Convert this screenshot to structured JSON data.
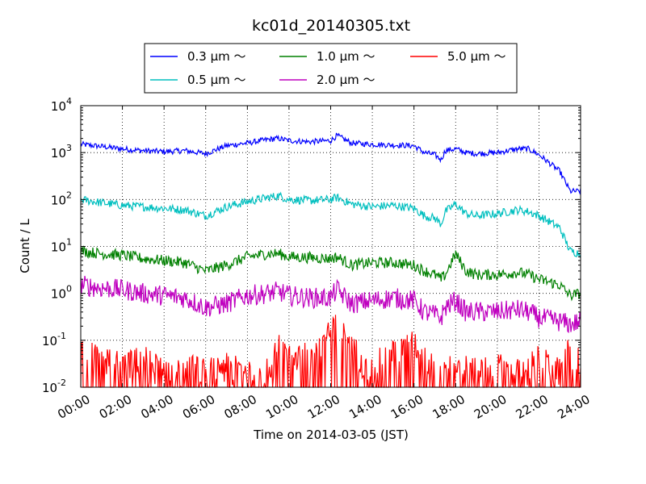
{
  "chart_data": {
    "type": "line",
    "title": "kc01d_20140305.txt",
    "xlabel": "Time on 2014-03-05 (JST)",
    "ylabel": "Count / L",
    "y_scale": "log",
    "ylim": [
      0.01,
      10000
    ],
    "xlim": [
      "00:00",
      "24:00"
    ],
    "grid": true,
    "legend_position": "top-center",
    "x_ticks": [
      "00:00",
      "02:00",
      "04:00",
      "06:00",
      "08:00",
      "10:00",
      "12:00",
      "14:00",
      "16:00",
      "18:00",
      "20:00",
      "22:00",
      "24:00"
    ],
    "y_ticks": [
      {
        "base": "10",
        "exp": "-2"
      },
      {
        "base": "10",
        "exp": "-1"
      },
      {
        "base": "10",
        "exp": "0"
      },
      {
        "base": "10",
        "exp": "1"
      },
      {
        "base": "10",
        "exp": "2"
      },
      {
        "base": "10",
        "exp": "3"
      },
      {
        "base": "10",
        "exp": "4"
      }
    ],
    "x_hours": [
      0,
      1,
      2,
      3,
      4,
      5,
      6,
      7,
      8,
      9,
      9.5,
      10,
      11,
      12,
      12.3,
      13,
      14,
      15,
      16,
      16.5,
      17,
      17.3,
      17.5,
      18,
      18.5,
      19,
      20,
      21,
      21.5,
      22,
      23,
      23.5,
      24
    ],
    "series": [
      {
        "name": "0.3 μm ～",
        "color": "#0000ff",
        "values": [
          1500,
          1350,
          1200,
          1100,
          1050,
          1100,
          950,
          1400,
          1600,
          1900,
          2000,
          1800,
          1700,
          1800,
          2300,
          1600,
          1500,
          1450,
          1400,
          1000,
          900,
          700,
          1100,
          1200,
          1000,
          950,
          1000,
          1200,
          1200,
          900,
          400,
          150,
          150
        ]
      },
      {
        "name": "0.5 μm ～",
        "color": "#00bfbf",
        "values": [
          100,
          85,
          75,
          70,
          65,
          60,
          45,
          70,
          90,
          110,
          120,
          100,
          95,
          100,
          110,
          80,
          70,
          75,
          65,
          45,
          40,
          30,
          55,
          80,
          50,
          45,
          50,
          60,
          55,
          45,
          25,
          8,
          7
        ]
      },
      {
        "name": "1.0 μm ～",
        "color": "#008000",
        "values": [
          8,
          7,
          6.5,
          5.5,
          5,
          4.5,
          3,
          4,
          6,
          7,
          7,
          6,
          5.8,
          5.5,
          6,
          4,
          4.5,
          4.5,
          4,
          3,
          2.5,
          2,
          2.5,
          7,
          3,
          2.5,
          2.5,
          2.8,
          2.5,
          2,
          1.5,
          0.9,
          1
        ]
      },
      {
        "name": "2.0 μm ～",
        "color": "#bf00bf",
        "values": [
          1.5,
          1.3,
          1.2,
          1,
          0.9,
          0.8,
          0.5,
          0.6,
          0.9,
          1,
          1.1,
          0.9,
          0.8,
          0.8,
          1.2,
          0.6,
          0.7,
          0.8,
          0.7,
          0.4,
          0.35,
          0.3,
          0.5,
          0.7,
          0.4,
          0.4,
          0.4,
          0.45,
          0.4,
          0.3,
          0.25,
          0.22,
          0.25
        ]
      },
      {
        "name": "5.0 μm ～",
        "color": "#ff0000",
        "values": [
          0.04,
          0.03,
          0.02,
          0.03,
          0.015,
          0.02,
          0.015,
          0.02,
          0.015,
          0.02,
          0.05,
          0.03,
          0.04,
          0.1,
          0.15,
          0.05,
          0.02,
          0.04,
          0.06,
          0.03,
          0.02,
          0.015,
          0.02,
          0.015,
          0.02,
          0.015,
          0.02,
          0.015,
          0.02,
          0.03,
          0.015,
          0.05,
          0.04
        ]
      }
    ]
  }
}
